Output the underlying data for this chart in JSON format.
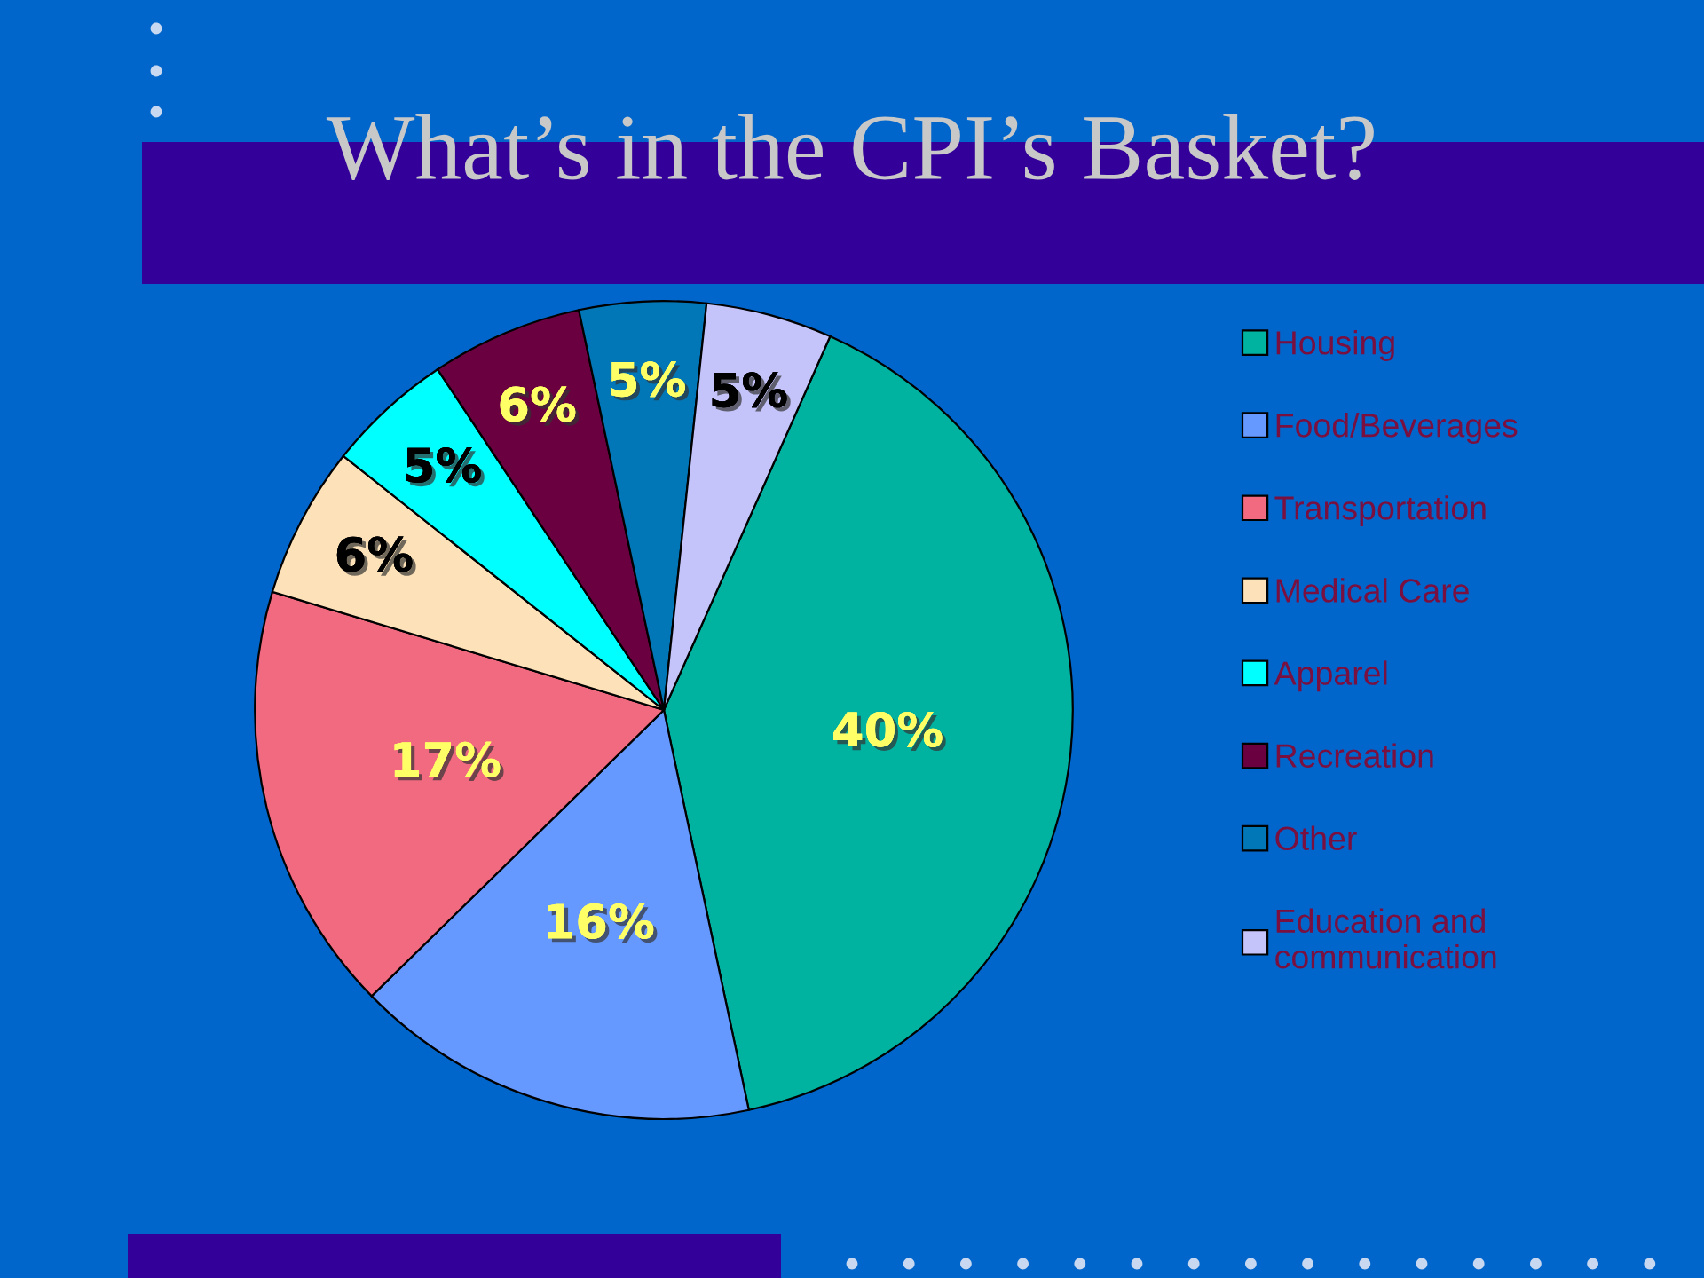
{
  "chart_data": {
    "type": "pie",
    "title": "What’s in the CPI’s Basket?",
    "categories": [
      "Housing",
      "Food/Beverages",
      "Transportation",
      "Medical Care",
      "Apparel",
      "Recreation",
      "Other",
      "Education and communication"
    ],
    "values": [
      40,
      16,
      17,
      6,
      5,
      6,
      5,
      5
    ],
    "colors": [
      "#00b3a1",
      "#6699ff",
      "#f26a80",
      "#fde2b9",
      "#00ffff",
      "#6b0040",
      "#0277b8",
      "#c4c4fb"
    ],
    "value_labels": [
      "40%",
      "16%",
      "17%",
      "6%",
      "5%",
      "6%",
      "5%",
      "5%"
    ],
    "legend": "right"
  }
}
